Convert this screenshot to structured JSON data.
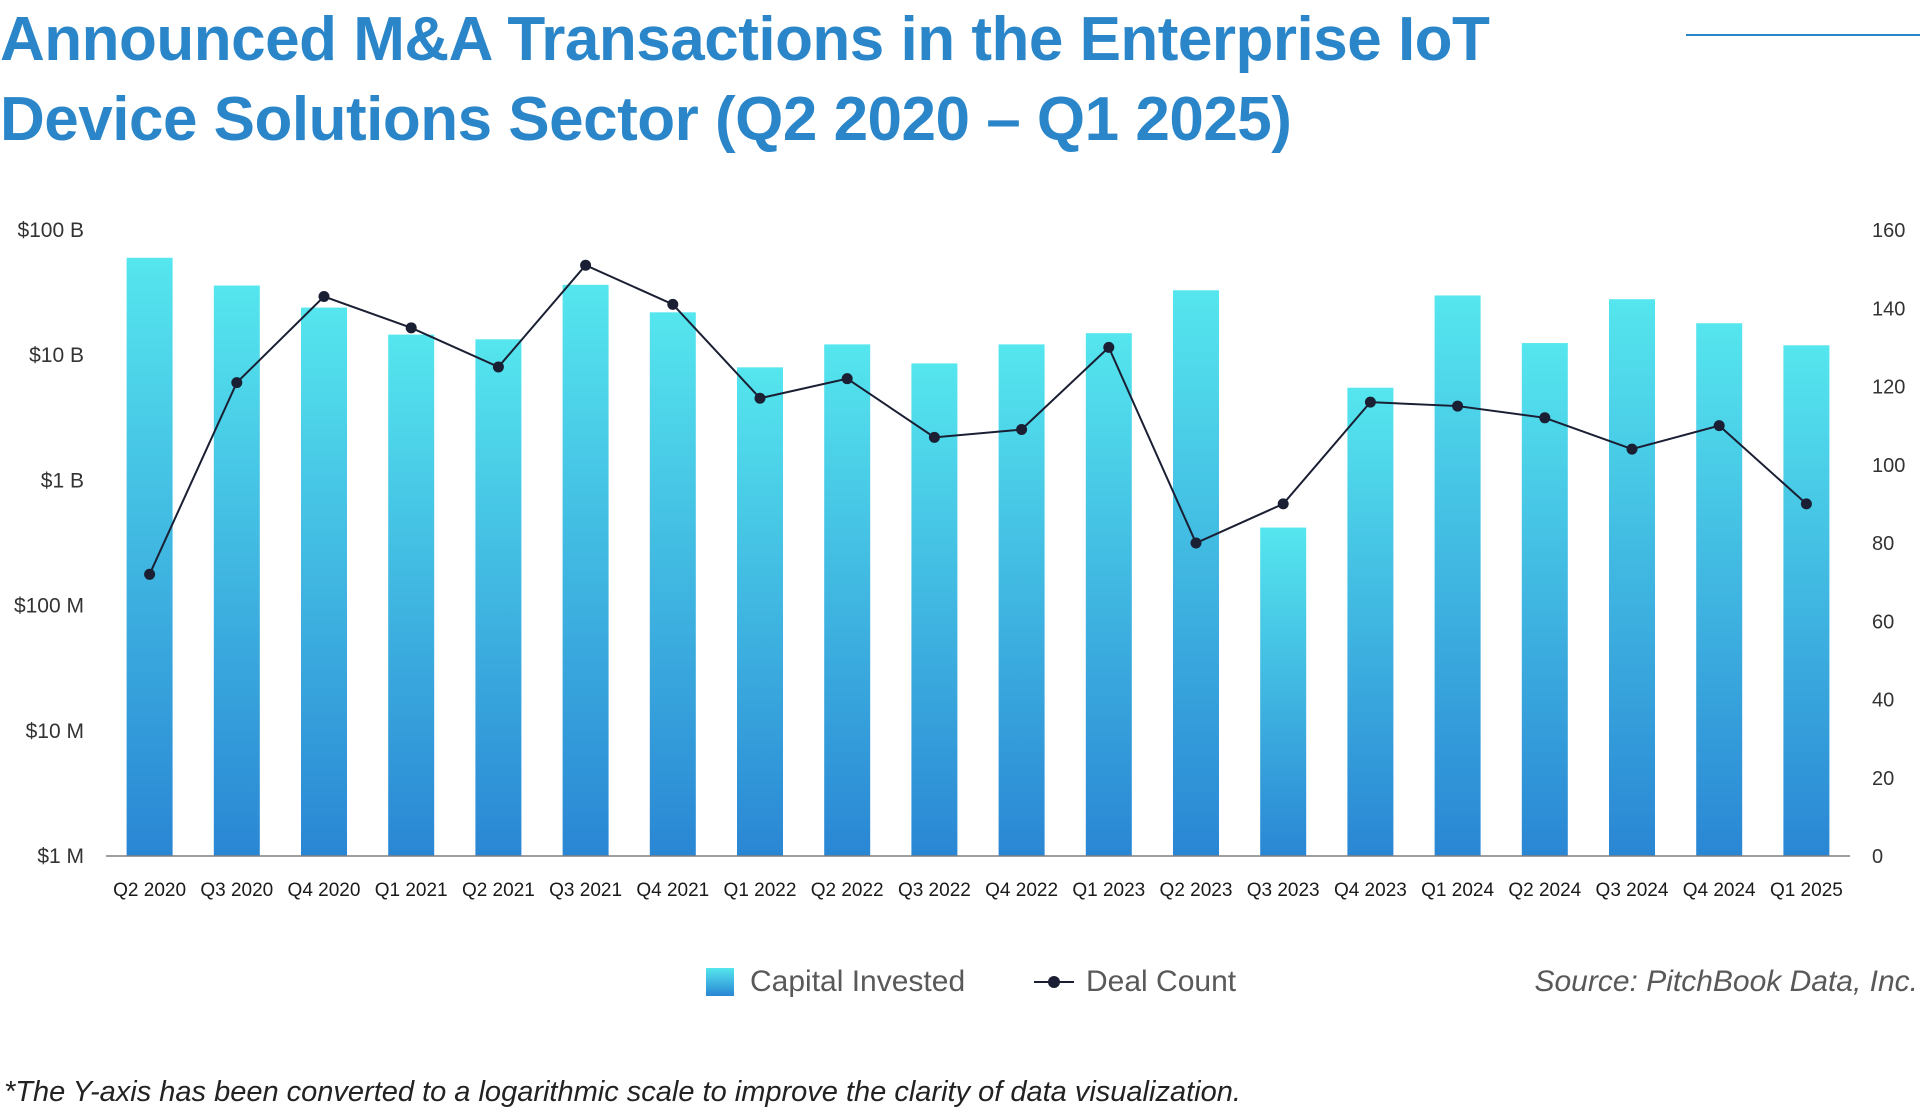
{
  "title": "Announced M&A Transactions in the Enterprise IoT Device Solutions Sector (Q2 2020 – Q1 2025)",
  "legend": {
    "bars": "Capital Invested",
    "line": "Deal Count"
  },
  "source": "Source: PitchBook Data, Inc.",
  "footnote": "*The Y-axis has been converted to a logarithmic scale to improve the clarity of data visualization.",
  "colors": {
    "title": "#2a86c9",
    "bar_top": "#55e6ee",
    "bar_bottom": "#2a86d4",
    "line": "#1a1f33",
    "axis_text": "#333333"
  },
  "chart_data": {
    "type": "bar",
    "categories": [
      "Q2 2020",
      "Q3 2020",
      "Q4 2020",
      "Q1 2021",
      "Q2 2021",
      "Q3 2021",
      "Q4 2021",
      "Q1 2022",
      "Q2 2022",
      "Q3 2022",
      "Q4 2022",
      "Q1 2023",
      "Q2 2023",
      "Q3 2023",
      "Q4 2023",
      "Q1 2024",
      "Q2 2024",
      "Q3 2024",
      "Q4 2024",
      "Q1 2025"
    ],
    "series": [
      {
        "name": "Capital Invested",
        "type": "bar",
        "axis": "left",
        "unit": "USD",
        "values": [
          60000000000,
          36000000000,
          24000000000,
          14600000000,
          13400000000,
          36500000000,
          22000000000,
          8000000000,
          12200000000,
          8600000000,
          12200000000,
          15000000000,
          33000000000,
          420000000,
          5500000000,
          30000000000,
          12500000000,
          28000000000,
          18000000000,
          12000000000
        ]
      },
      {
        "name": "Deal Count",
        "type": "line",
        "axis": "right",
        "values": [
          72,
          121,
          143,
          135,
          125,
          151,
          141,
          117,
          122,
          107,
          109,
          130,
          80,
          90,
          116,
          115,
          112,
          104,
          110,
          90
        ]
      }
    ],
    "y_left": {
      "scale": "log",
      "range": [
        1000000,
        100000000000
      ],
      "ticks": [
        {
          "value": 1000000,
          "label": "$1 M"
        },
        {
          "value": 10000000,
          "label": "$10 M"
        },
        {
          "value": 100000000,
          "label": "$100 M"
        },
        {
          "value": 1000000000,
          "label": "$1 B"
        },
        {
          "value": 10000000000,
          "label": "$10 B"
        },
        {
          "value": 100000000000,
          "label": "$100 B"
        }
      ]
    },
    "y_right": {
      "scale": "linear",
      "range": [
        0,
        160
      ],
      "ticks": [
        0,
        20,
        40,
        60,
        80,
        100,
        120,
        140,
        160
      ]
    },
    "grid": false,
    "legend_position": "bottom"
  }
}
